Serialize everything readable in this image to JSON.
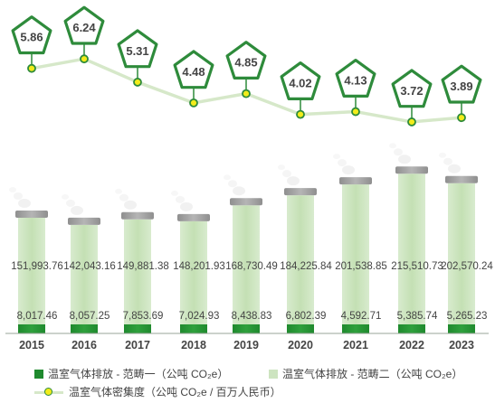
{
  "colors": {
    "scope1": "#1f8a2e",
    "scope2": "#cde4c0",
    "intensity_line": "#d6e8c9",
    "intensity_marker_fill": "#f2ec1a",
    "marker_border": "#2e8b3b",
    "bubble_border": "#2e8b3b"
  },
  "legend": {
    "scope1": "温室气体排放 - 范畴一（公吨 CO₂e）",
    "scope2": "温室气体排放 - 范畴二（公吨 CO₂e）",
    "intensity": "温室气体密集度（公吨 CO₂e / 百万人民币）"
  },
  "chart_data": {
    "type": "bar",
    "stacked": true,
    "categories": [
      "2015",
      "2016",
      "2017",
      "2018",
      "2019",
      "2020",
      "2021",
      "2022",
      "2023"
    ],
    "series": [
      {
        "name": "温室气体排放 - 范畴一（公吨 CO₂e）",
        "values": [
          8017.46,
          8057.25,
          7853.69,
          7024.93,
          8438.83,
          6802.39,
          4592.71,
          5385.74,
          5265.23
        ],
        "labels": [
          "8,017.46",
          "8,057.25",
          "7,853.69",
          "7,024.93",
          "8,438.83",
          "6,802.39",
          "4,592.71",
          "5,385.74",
          "5,265.23"
        ]
      },
      {
        "name": "温室气体排放 - 范畴二（公吨 CO₂e）",
        "values": [
          151993.76,
          142043.16,
          149881.38,
          148201.93,
          168730.49,
          184225.84,
          201538.85,
          215510.73,
          202570.24
        ],
        "labels": [
          "151,993.76",
          "142,043.16",
          "149,881.38",
          "148,201.93",
          "168,730.49",
          "184,225.84",
          "201,538.85",
          "215,510.73",
          "202,570.24"
        ]
      },
      {
        "name": "温室气体密集度（公吨 CO₂e / 百万人民币）",
        "type": "line",
        "values": [
          5.86,
          6.24,
          5.31,
          4.48,
          4.85,
          4.02,
          4.13,
          3.72,
          3.89
        ],
        "labels": [
          "5.86",
          "6.24",
          "5.31",
          "4.48",
          "4.85",
          "4.02",
          "4.13",
          "3.72",
          "3.89"
        ]
      }
    ],
    "bar_ylim": [
      0,
      235000
    ],
    "line_ylim": [
      3.5,
      6.5
    ],
    "grid": false,
    "legend_position": "bottom"
  }
}
